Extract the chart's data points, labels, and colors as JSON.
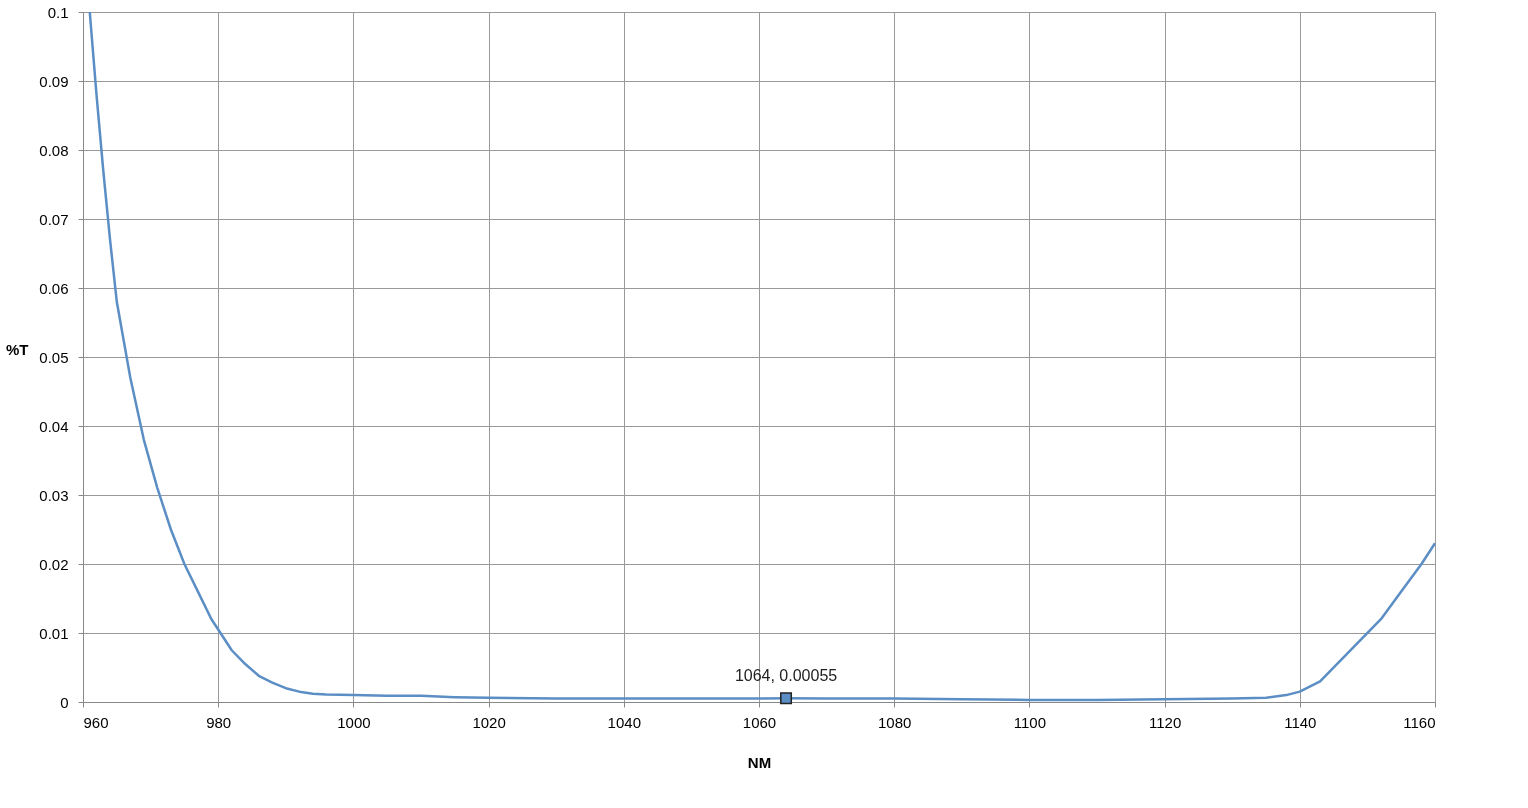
{
  "chart_data": {
    "type": "line",
    "xlabel": "NM",
    "ylabel": "%T",
    "x": [
      961,
      962,
      963,
      964,
      965,
      967,
      969,
      971,
      973,
      975,
      977,
      979,
      980,
      982,
      984,
      986,
      988,
      990,
      992,
      994,
      996,
      1000,
      1005,
      1010,
      1015,
      1020,
      1030,
      1040,
      1050,
      1060,
      1064,
      1070,
      1080,
      1090,
      1100,
      1110,
      1120,
      1130,
      1135,
      1138,
      1140,
      1143,
      1146,
      1149,
      1152,
      1155,
      1158,
      1160
    ],
    "series": [
      {
        "color": "#5b8ec4",
        "values": [
          0.1,
          0.088,
          0.077,
          0.067,
          0.058,
          0.047,
          0.038,
          0.031,
          0.025,
          0.02,
          0.016,
          0.012,
          0.0105,
          0.0075,
          0.0055,
          0.0038,
          0.0028,
          0.002,
          0.0015,
          0.0012,
          0.0011,
          0.001,
          0.0009,
          0.0009,
          0.0007,
          0.0006,
          0.0005,
          0.0005,
          0.0005,
          0.0005,
          0.00055,
          0.0005,
          0.0005,
          0.0004,
          0.0003,
          0.0003,
          0.0004,
          0.0005,
          0.0006,
          0.001,
          0.0015,
          0.003,
          0.006,
          0.009,
          0.012,
          0.016,
          0.02,
          0.023
        ]
      }
    ],
    "xlim": [
      960,
      1160
    ],
    "xticks": [
      960,
      980,
      1000,
      1020,
      1040,
      1060,
      1080,
      1100,
      1120,
      1140,
      1160
    ],
    "ylim": [
      0,
      0.1
    ],
    "yticks": [
      0,
      0.01,
      0.02,
      0.03,
      0.04,
      0.05,
      0.06,
      0.07,
      0.08,
      0.09,
      0.1
    ],
    "grid": true,
    "marker": "none",
    "line_style": "solid",
    "annotations": [
      {
        "text": "1064, 0.00055",
        "x": 1064,
        "y": 0.00055
      }
    ]
  }
}
